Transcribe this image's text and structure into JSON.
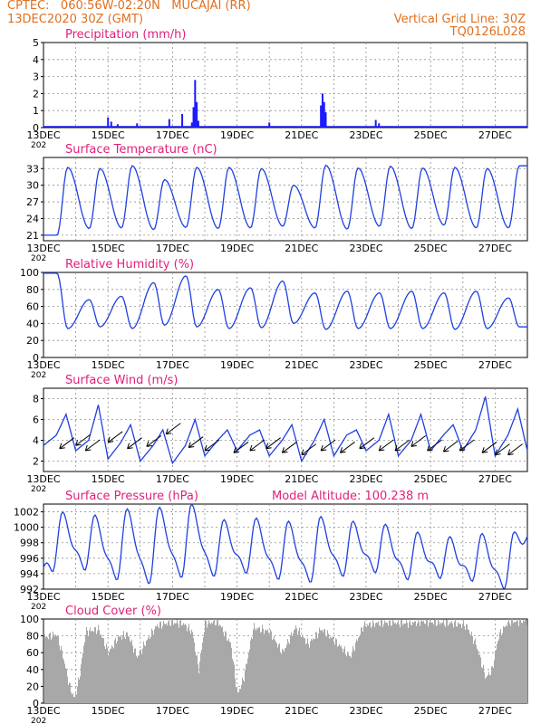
{
  "header": {
    "station": "CPTEC:   060:56W-02:20N   MUCAJAI (RR)",
    "date": "13DEC2020 30Z (GMT)",
    "grid_note": "Vertical Grid Line: 30Z",
    "run_id": "TQ0126L028"
  },
  "colors": {
    "header": "#e07020",
    "title": "#e0207a",
    "line": "#2040e0",
    "bar": "#1a1aff",
    "cloud": "#a8a8a8",
    "grid": "#909090"
  },
  "x_ticks": [
    "13DEC",
    "15DEC",
    "17DEC",
    "19DEC",
    "21DEC",
    "23DEC",
    "25DEC",
    "27DEC"
  ],
  "x_year_fragment": "202",
  "chart_data": [
    {
      "type": "bar",
      "title": "Precipitation (mm/h)",
      "ylim": [
        0,
        5
      ],
      "yticks": [
        0,
        1,
        2,
        3,
        4,
        5
      ],
      "x_range_days": [
        13,
        28
      ],
      "bars": [
        {
          "x": 15.0,
          "y": 0.6
        },
        {
          "x": 15.1,
          "y": 0.35
        },
        {
          "x": 15.3,
          "y": 0.2
        },
        {
          "x": 15.9,
          "y": 0.25
        },
        {
          "x": 16.9,
          "y": 0.5
        },
        {
          "x": 17.3,
          "y": 0.8
        },
        {
          "x": 17.6,
          "y": 0.3
        },
        {
          "x": 17.65,
          "y": 1.2
        },
        {
          "x": 17.7,
          "y": 2.8
        },
        {
          "x": 17.75,
          "y": 1.5
        },
        {
          "x": 17.8,
          "y": 0.4
        },
        {
          "x": 20.0,
          "y": 0.3
        },
        {
          "x": 21.6,
          "y": 1.3
        },
        {
          "x": 21.65,
          "y": 2.0
        },
        {
          "x": 21.7,
          "y": 1.5
        },
        {
          "x": 21.75,
          "y": 0.9
        },
        {
          "x": 23.3,
          "y": 0.45
        },
        {
          "x": 23.4,
          "y": 0.25
        }
      ]
    },
    {
      "type": "line",
      "title": "Surface Temperature (nC)",
      "ylim": [
        20,
        35
      ],
      "yticks": [
        21,
        24,
        27,
        30,
        33
      ],
      "x_range_days": [
        13,
        28
      ],
      "daily_min": [
        21.0,
        22.2,
        22.3,
        22.0,
        22.4,
        22.2,
        22.3,
        22.6,
        22.3,
        22.1,
        22.6,
        22.2,
        22.8,
        22.3,
        22.3
      ],
      "daily_max": [
        33.2,
        33.0,
        33.5,
        31.0,
        33.2,
        33.2,
        33.0,
        30.0,
        33.6,
        33.1,
        33.4,
        33.1,
        33.2,
        33.0,
        33.5
      ]
    },
    {
      "type": "line",
      "title": "Relative Humidity (%)",
      "ylim": [
        0,
        100
      ],
      "yticks": [
        0,
        20,
        40,
        60,
        80,
        100
      ],
      "x_range_days": [
        13,
        28
      ],
      "daily_max": [
        99,
        68,
        72,
        88,
        96,
        80,
        82,
        90,
        76,
        78,
        76,
        78,
        76,
        78,
        70
      ],
      "daily_min": [
        34,
        36,
        34,
        38,
        36,
        34,
        35,
        40,
        33,
        34,
        34,
        34,
        33,
        34,
        36
      ]
    },
    {
      "type": "line",
      "title": "Surface Wind (m/s)",
      "ylim": [
        1,
        9
      ],
      "yticks": [
        2,
        4,
        6,
        8
      ],
      "x_range_days": [
        13,
        28
      ],
      "speed_points": [
        {
          "x": 13.0,
          "y": 3.5
        },
        {
          "x": 13.4,
          "y": 4.5
        },
        {
          "x": 13.7,
          "y": 6.5
        },
        {
          "x": 14.0,
          "y": 3.0
        },
        {
          "x": 14.4,
          "y": 4.0
        },
        {
          "x": 14.7,
          "y": 7.4
        },
        {
          "x": 15.0,
          "y": 2.2
        },
        {
          "x": 15.4,
          "y": 3.8
        },
        {
          "x": 15.7,
          "y": 5.5
        },
        {
          "x": 16.0,
          "y": 2.0
        },
        {
          "x": 16.4,
          "y": 3.5
        },
        {
          "x": 16.7,
          "y": 5.0
        },
        {
          "x": 17.0,
          "y": 1.8
        },
        {
          "x": 17.4,
          "y": 3.5
        },
        {
          "x": 17.7,
          "y": 6.0
        },
        {
          "x": 18.0,
          "y": 2.5
        },
        {
          "x": 18.4,
          "y": 4.0
        },
        {
          "x": 18.7,
          "y": 5.0
        },
        {
          "x": 19.0,
          "y": 3.0
        },
        {
          "x": 19.4,
          "y": 4.5
        },
        {
          "x": 19.7,
          "y": 5.0
        },
        {
          "x": 20.0,
          "y": 2.5
        },
        {
          "x": 20.4,
          "y": 4.0
        },
        {
          "x": 20.7,
          "y": 5.5
        },
        {
          "x": 21.0,
          "y": 2.0
        },
        {
          "x": 21.4,
          "y": 4.0
        },
        {
          "x": 21.7,
          "y": 6.0
        },
        {
          "x": 22.0,
          "y": 2.5
        },
        {
          "x": 22.4,
          "y": 4.5
        },
        {
          "x": 22.7,
          "y": 5.0
        },
        {
          "x": 23.0,
          "y": 3.0
        },
        {
          "x": 23.4,
          "y": 4.0
        },
        {
          "x": 23.7,
          "y": 6.5
        },
        {
          "x": 24.0,
          "y": 2.5
        },
        {
          "x": 24.4,
          "y": 4.0
        },
        {
          "x": 24.7,
          "y": 6.5
        },
        {
          "x": 25.0,
          "y": 3.0
        },
        {
          "x": 25.4,
          "y": 4.5
        },
        {
          "x": 25.7,
          "y": 5.5
        },
        {
          "x": 26.0,
          "y": 3.0
        },
        {
          "x": 26.4,
          "y": 5.0
        },
        {
          "x": 26.7,
          "y": 8.2
        },
        {
          "x": 27.0,
          "y": 2.5
        },
        {
          "x": 27.4,
          "y": 4.5
        },
        {
          "x": 27.7,
          "y": 7.0
        },
        {
          "x": 28.0,
          "y": 3.0
        }
      ],
      "arrows": [
        {
          "x": 13.5,
          "y": 3.2
        },
        {
          "x": 14.0,
          "y": 3.5
        },
        {
          "x": 14.3,
          "y": 3.0
        },
        {
          "x": 15.0,
          "y": 3.8
        },
        {
          "x": 15.6,
          "y": 3.2
        },
        {
          "x": 16.2,
          "y": 3.4
        },
        {
          "x": 16.8,
          "y": 4.6
        },
        {
          "x": 17.5,
          "y": 3.3
        },
        {
          "x": 18.0,
          "y": 3.0
        },
        {
          "x": 18.9,
          "y": 2.8
        },
        {
          "x": 19.4,
          "y": 3.0
        },
        {
          "x": 19.9,
          "y": 3.2
        },
        {
          "x": 20.4,
          "y": 2.8
        },
        {
          "x": 21.0,
          "y": 2.6
        },
        {
          "x": 21.6,
          "y": 3.0
        },
        {
          "x": 22.2,
          "y": 2.8
        },
        {
          "x": 22.8,
          "y": 3.2
        },
        {
          "x": 23.4,
          "y": 3.0
        },
        {
          "x": 23.9,
          "y": 3.0
        },
        {
          "x": 24.4,
          "y": 3.4
        },
        {
          "x": 24.9,
          "y": 3.0
        },
        {
          "x": 25.4,
          "y": 2.9
        },
        {
          "x": 25.9,
          "y": 3.0
        },
        {
          "x": 26.6,
          "y": 2.8
        },
        {
          "x": 27.0,
          "y": 2.6
        },
        {
          "x": 27.4,
          "y": 2.6
        }
      ]
    },
    {
      "type": "line",
      "title": "Surface Pressure (hPa)",
      "annotation": "Model Altitude: 100.238  m",
      "ylim": [
        992,
        1003
      ],
      "yticks": [
        992,
        994,
        996,
        998,
        1000,
        1002
      ],
      "x_range_days": [
        13,
        28
      ],
      "daily_max": [
        1001.2,
        1000.8,
        1001.6,
        1001.8,
        1002.2,
        1000.2,
        1000.4,
        1000.0,
        1000.6,
        1000.0,
        999.6,
        998.6,
        998.0,
        998.4,
        998.6
      ],
      "daily_min": [
        994.6,
        994.8,
        993.5,
        993.0,
        993.8,
        994.0,
        994.4,
        993.6,
        993.2,
        994.0,
        994.5,
        993.6,
        993.8,
        993.4,
        992.4
      ]
    },
    {
      "type": "bar",
      "title": "Cloud Cover (%)",
      "ylim": [
        0,
        100
      ],
      "yticks": [
        0,
        20,
        40,
        60,
        80,
        100
      ],
      "x_range_days": [
        13,
        28
      ],
      "profile": [
        {
          "x": 13.0,
          "y": 78
        },
        {
          "x": 13.4,
          "y": 82
        },
        {
          "x": 13.6,
          "y": 55
        },
        {
          "x": 13.8,
          "y": 20
        },
        {
          "x": 13.95,
          "y": 5
        },
        {
          "x": 14.1,
          "y": 30
        },
        {
          "x": 14.3,
          "y": 85
        },
        {
          "x": 14.7,
          "y": 88
        },
        {
          "x": 15.0,
          "y": 60
        },
        {
          "x": 15.3,
          "y": 78
        },
        {
          "x": 15.6,
          "y": 82
        },
        {
          "x": 15.9,
          "y": 55
        },
        {
          "x": 16.2,
          "y": 75
        },
        {
          "x": 16.5,
          "y": 92
        },
        {
          "x": 16.9,
          "y": 96
        },
        {
          "x": 17.3,
          "y": 95
        },
        {
          "x": 17.6,
          "y": 85
        },
        {
          "x": 17.8,
          "y": 40
        },
        {
          "x": 18.0,
          "y": 95
        },
        {
          "x": 18.4,
          "y": 97
        },
        {
          "x": 18.8,
          "y": 70
        },
        {
          "x": 19.0,
          "y": 10
        },
        {
          "x": 19.2,
          "y": 30
        },
        {
          "x": 19.5,
          "y": 90
        },
        {
          "x": 20.0,
          "y": 85
        },
        {
          "x": 20.4,
          "y": 60
        },
        {
          "x": 20.8,
          "y": 90
        },
        {
          "x": 21.2,
          "y": 70
        },
        {
          "x": 21.6,
          "y": 88
        },
        {
          "x": 22.0,
          "y": 75
        },
        {
          "x": 22.5,
          "y": 55
        },
        {
          "x": 22.9,
          "y": 92
        },
        {
          "x": 23.3,
          "y": 95
        },
        {
          "x": 23.8,
          "y": 96
        },
        {
          "x": 24.3,
          "y": 95
        },
        {
          "x": 24.8,
          "y": 97
        },
        {
          "x": 25.2,
          "y": 96
        },
        {
          "x": 25.7,
          "y": 95
        },
        {
          "x": 26.1,
          "y": 92
        },
        {
          "x": 26.4,
          "y": 70
        },
        {
          "x": 26.7,
          "y": 30
        },
        {
          "x": 26.9,
          "y": 40
        },
        {
          "x": 27.1,
          "y": 80
        },
        {
          "x": 27.4,
          "y": 97
        },
        {
          "x": 28.0,
          "y": 98
        }
      ]
    }
  ]
}
